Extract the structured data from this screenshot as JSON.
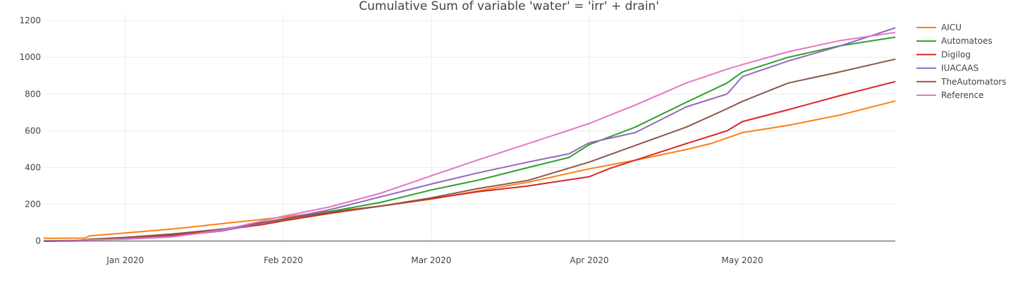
{
  "chart_data": {
    "type": "line",
    "title": "Cumulative Sum of variable 'water' = 'irr' + drain'",
    "xlabel": "",
    "ylabel": "",
    "x_ticks": [
      "Jan 2020",
      "Feb 2020",
      "Mar 2020",
      "Apr 2020",
      "May 2020"
    ],
    "x_tick_dates": [
      "2020-01-01",
      "2020-02-01",
      "2020-03-01",
      "2020-04-01",
      "2020-05-01"
    ],
    "xlim": [
      "2019-12-16",
      "2020-05-31"
    ],
    "y_ticks": [
      0,
      200,
      400,
      600,
      800,
      1000,
      1200
    ],
    "ylim": [
      -5,
      1235
    ],
    "grid": true,
    "legend_position": "right",
    "series": [
      {
        "name": "AICU",
        "color": "#ff7f0e",
        "points": [
          [
            "2019-12-16",
            15
          ],
          [
            "2019-12-24",
            16
          ],
          [
            "2019-12-25",
            28
          ],
          [
            "2019-12-28",
            35
          ],
          [
            "2020-01-01",
            44
          ],
          [
            "2020-01-10",
            65
          ],
          [
            "2020-01-20",
            95
          ],
          [
            "2020-02-01",
            130
          ],
          [
            "2020-02-10",
            160
          ],
          [
            "2020-02-20",
            190
          ],
          [
            "2020-03-01",
            228
          ],
          [
            "2020-03-10",
            272
          ],
          [
            "2020-03-20",
            320
          ],
          [
            "2020-04-01",
            393
          ],
          [
            "2020-04-10",
            440
          ],
          [
            "2020-04-20",
            498
          ],
          [
            "2020-04-25",
            532
          ],
          [
            "2020-05-01",
            590
          ],
          [
            "2020-05-10",
            630
          ],
          [
            "2020-05-20",
            685
          ],
          [
            "2020-05-31",
            762
          ]
        ]
      },
      {
        "name": "Automatoes",
        "color": "#2ca02c",
        "points": [
          [
            "2019-12-16",
            0
          ],
          [
            "2019-12-22",
            2
          ],
          [
            "2019-12-25",
            10
          ],
          [
            "2020-01-01",
            18
          ],
          [
            "2020-01-10",
            35
          ],
          [
            "2020-01-20",
            60
          ],
          [
            "2020-02-01",
            118
          ],
          [
            "2020-02-10",
            160
          ],
          [
            "2020-02-20",
            210
          ],
          [
            "2020-03-01",
            278
          ],
          [
            "2020-03-10",
            330
          ],
          [
            "2020-03-20",
            400
          ],
          [
            "2020-03-28",
            455
          ],
          [
            "2020-04-01",
            525
          ],
          [
            "2020-04-10",
            620
          ],
          [
            "2020-04-20",
            755
          ],
          [
            "2020-04-28",
            860
          ],
          [
            "2020-05-01",
            920
          ],
          [
            "2020-05-10",
            1000
          ],
          [
            "2020-05-20",
            1062
          ],
          [
            "2020-05-31",
            1110
          ]
        ]
      },
      {
        "name": "Digilog",
        "color": "#d62728",
        "points": [
          [
            "2019-12-16",
            0
          ],
          [
            "2019-12-22",
            2
          ],
          [
            "2019-12-25",
            8
          ],
          [
            "2020-01-01",
            16
          ],
          [
            "2020-01-10",
            30
          ],
          [
            "2020-01-20",
            60
          ],
          [
            "2020-01-28",
            90
          ],
          [
            "2020-02-01",
            110
          ],
          [
            "2020-02-10",
            150
          ],
          [
            "2020-02-20",
            190
          ],
          [
            "2020-03-01",
            230
          ],
          [
            "2020-03-10",
            268
          ],
          [
            "2020-03-20",
            300
          ],
          [
            "2020-04-01",
            350
          ],
          [
            "2020-04-05",
            395
          ],
          [
            "2020-04-10",
            440
          ],
          [
            "2020-04-20",
            530
          ],
          [
            "2020-04-28",
            600
          ],
          [
            "2020-05-01",
            650
          ],
          [
            "2020-05-10",
            715
          ],
          [
            "2020-05-20",
            790
          ],
          [
            "2020-05-31",
            868
          ]
        ]
      },
      {
        "name": "IUACAAS",
        "color": "#9467bd",
        "points": [
          [
            "2019-12-16",
            0
          ],
          [
            "2019-12-22",
            1
          ],
          [
            "2019-12-25",
            6
          ],
          [
            "2020-01-01",
            14
          ],
          [
            "2020-01-10",
            25
          ],
          [
            "2020-01-20",
            55
          ],
          [
            "2020-02-01",
            120
          ],
          [
            "2020-02-10",
            170
          ],
          [
            "2020-02-20",
            240
          ],
          [
            "2020-03-01",
            310
          ],
          [
            "2020-03-10",
            370
          ],
          [
            "2020-03-20",
            430
          ],
          [
            "2020-03-28",
            475
          ],
          [
            "2020-04-01",
            535
          ],
          [
            "2020-04-10",
            590
          ],
          [
            "2020-04-20",
            730
          ],
          [
            "2020-04-28",
            800
          ],
          [
            "2020-05-01",
            895
          ],
          [
            "2020-05-10",
            980
          ],
          [
            "2020-05-20",
            1060
          ],
          [
            "2020-05-31",
            1160
          ]
        ]
      },
      {
        "name": "TheAutomators",
        "color": "#8c564b",
        "points": [
          [
            "2019-12-16",
            0
          ],
          [
            "2019-12-22",
            2
          ],
          [
            "2019-12-25",
            10
          ],
          [
            "2020-01-01",
            20
          ],
          [
            "2020-01-10",
            38
          ],
          [
            "2020-01-20",
            65
          ],
          [
            "2020-02-01",
            120
          ],
          [
            "2020-02-10",
            155
          ],
          [
            "2020-02-20",
            190
          ],
          [
            "2020-03-01",
            235
          ],
          [
            "2020-03-10",
            285
          ],
          [
            "2020-03-20",
            330
          ],
          [
            "2020-04-01",
            430
          ],
          [
            "2020-04-10",
            520
          ],
          [
            "2020-04-20",
            620
          ],
          [
            "2020-04-28",
            720
          ],
          [
            "2020-05-01",
            760
          ],
          [
            "2020-05-10",
            860
          ],
          [
            "2020-05-20",
            920
          ],
          [
            "2020-05-31",
            990
          ]
        ]
      },
      {
        "name": "Reference",
        "color": "#e377c2",
        "points": [
          [
            "2019-12-16",
            2
          ],
          [
            "2019-12-22",
            4
          ],
          [
            "2019-12-25",
            6
          ],
          [
            "2020-01-01",
            10
          ],
          [
            "2020-01-10",
            22
          ],
          [
            "2020-01-20",
            60
          ],
          [
            "2020-02-01",
            135
          ],
          [
            "2020-02-10",
            185
          ],
          [
            "2020-02-20",
            260
          ],
          [
            "2020-03-01",
            355
          ],
          [
            "2020-03-10",
            440
          ],
          [
            "2020-03-20",
            530
          ],
          [
            "2020-04-01",
            640
          ],
          [
            "2020-04-10",
            740
          ],
          [
            "2020-04-20",
            860
          ],
          [
            "2020-04-28",
            935
          ],
          [
            "2020-05-01",
            960
          ],
          [
            "2020-05-10",
            1030
          ],
          [
            "2020-05-20",
            1090
          ],
          [
            "2020-05-31",
            1135
          ]
        ]
      }
    ]
  }
}
